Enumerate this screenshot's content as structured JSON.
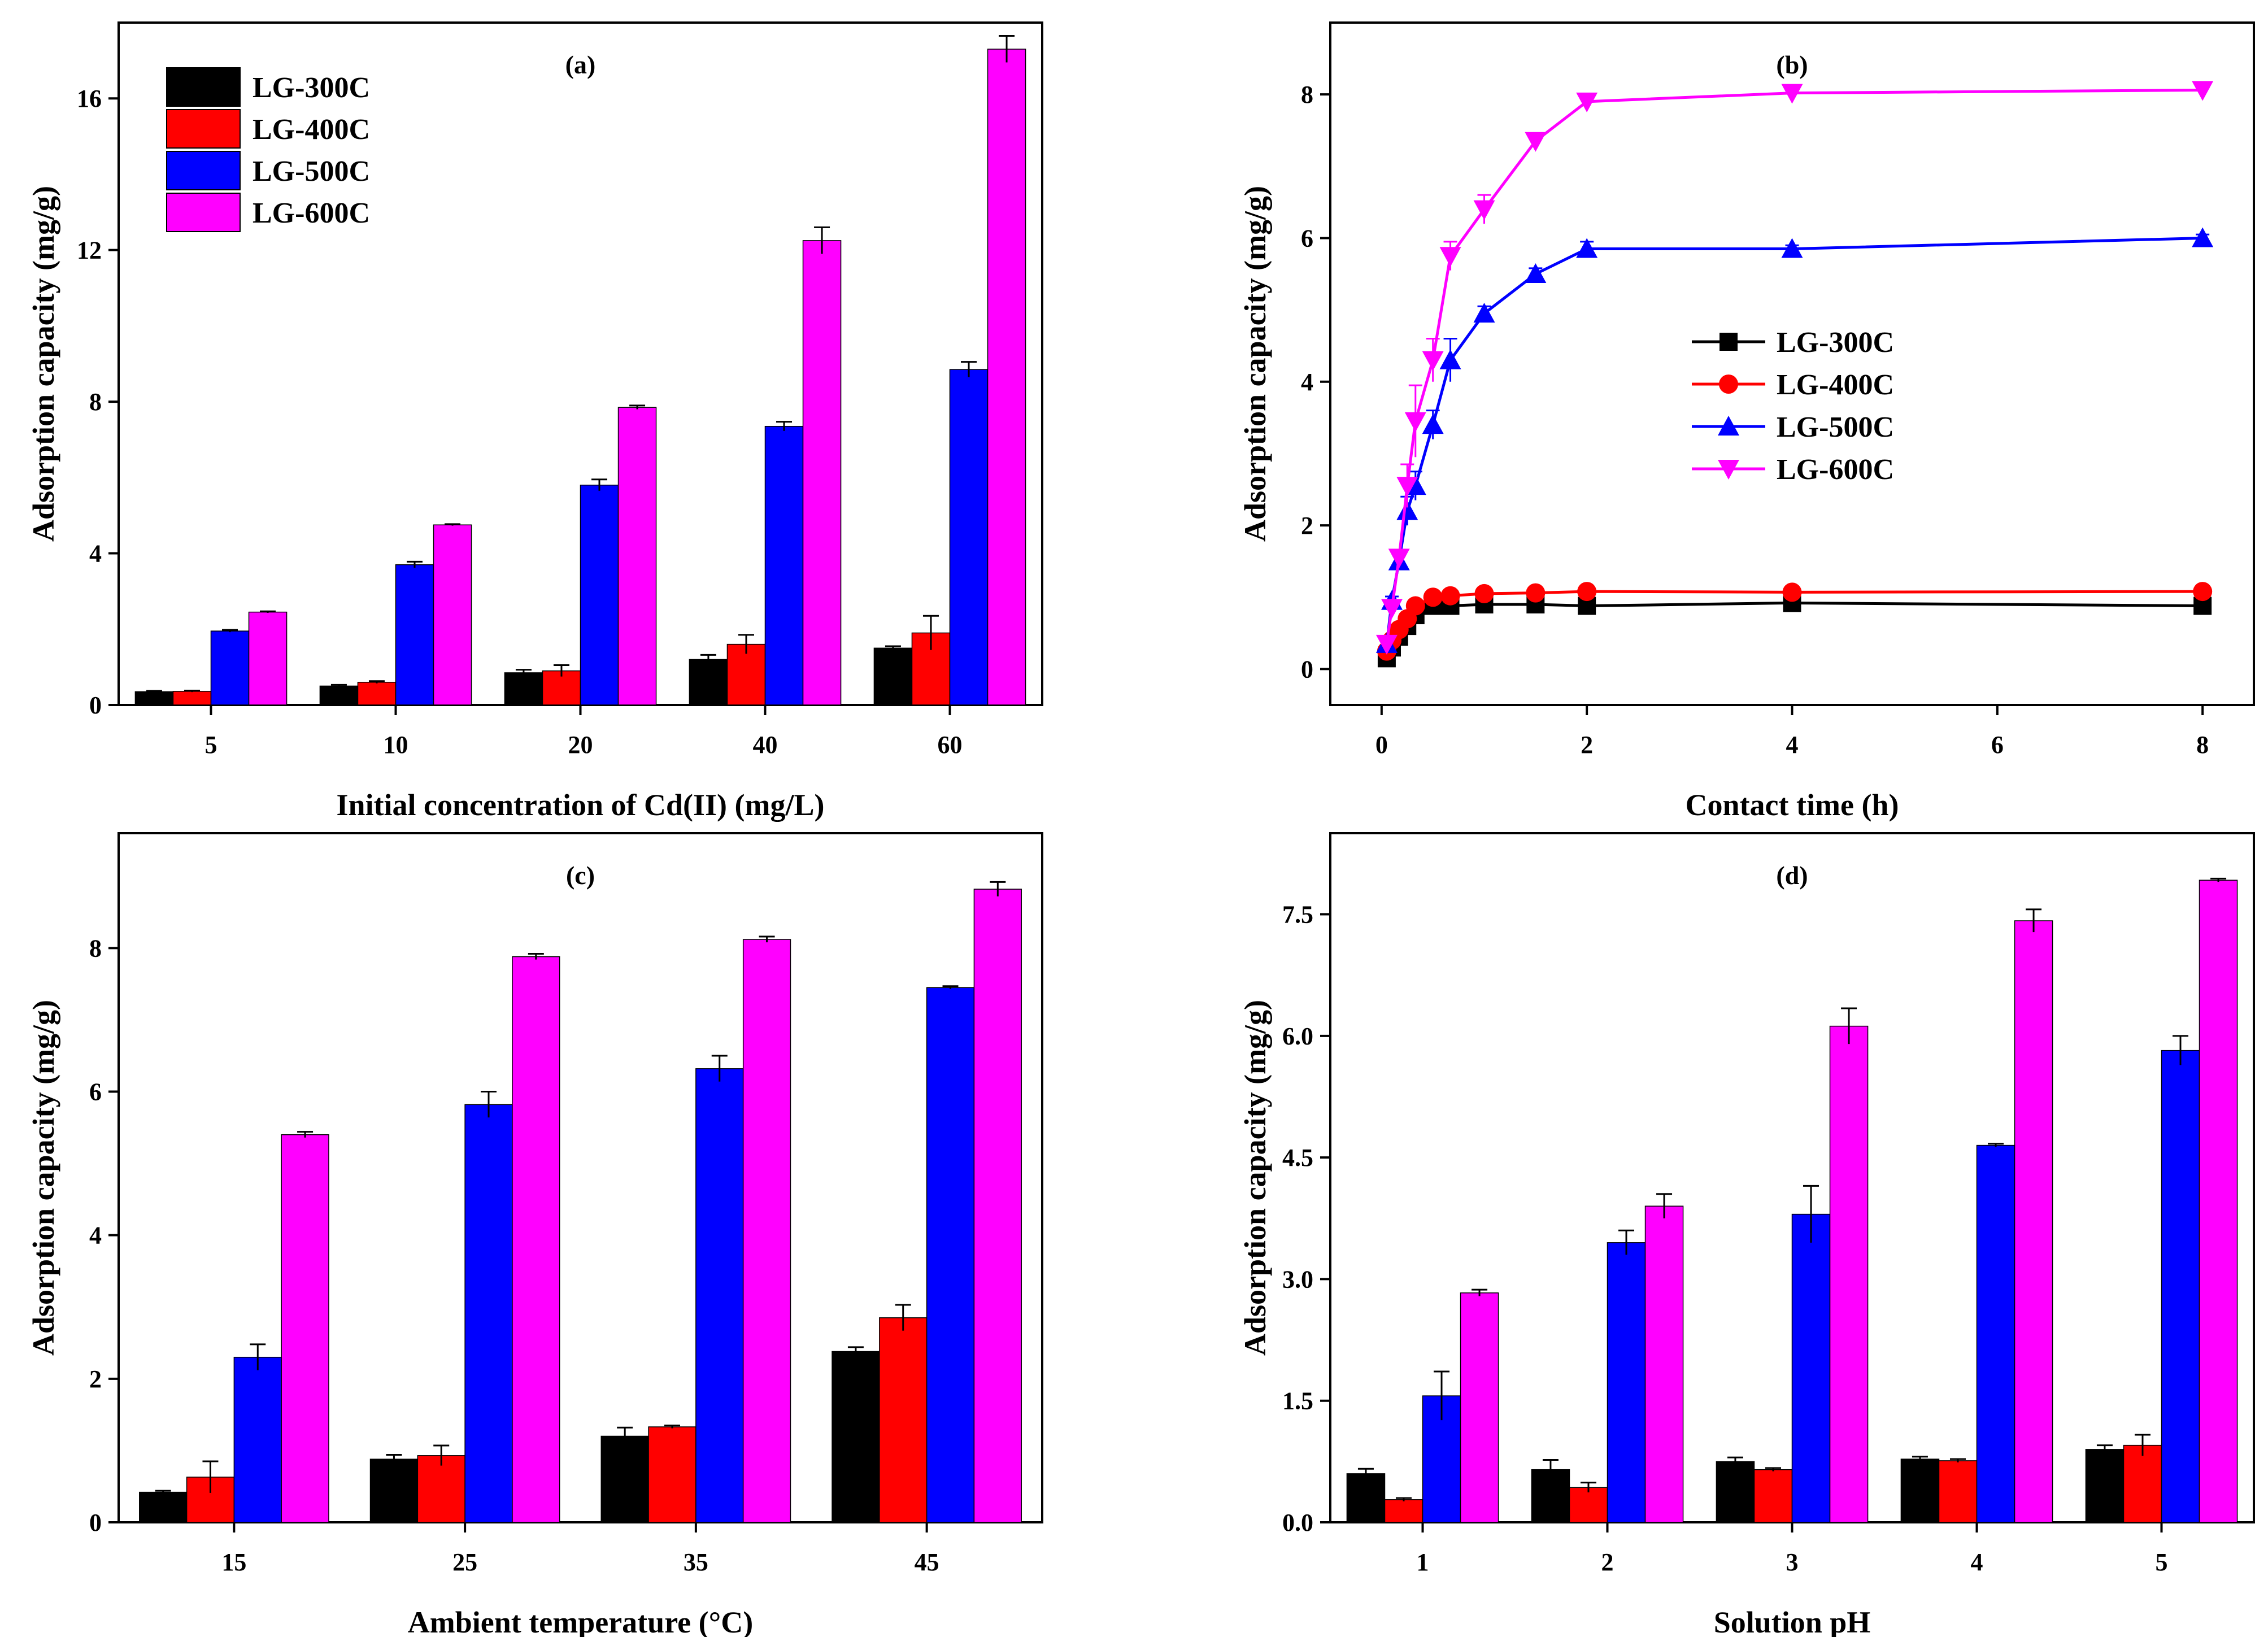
{
  "series_names": [
    "LG-300C",
    "LG-400C",
    "LG-500C",
    "LG-600C"
  ],
  "colors": {
    "LG-300C": "#000000",
    "LG-400C": "#ff0000",
    "LG-500C": "#0000ff",
    "LG-600C": "#ff00ff"
  },
  "chart_data": [
    {
      "id": "a",
      "type": "bar",
      "panel_label": "(a)",
      "xlabel": "Initial concentration of Cd(II) (mg/L)",
      "ylabel": "Adsorption capacity (mg/g)",
      "categories": [
        "5",
        "10",
        "20",
        "40",
        "60"
      ],
      "ylim": [
        0,
        18
      ],
      "yticks": [
        0,
        4,
        8,
        12,
        16
      ],
      "ytick_labels": [
        "0",
        "4",
        "8",
        "12",
        "16"
      ],
      "legend": "top-left",
      "series": [
        {
          "name": "LG-300C",
          "values": [
            0.35,
            0.5,
            0.85,
            1.2,
            1.5
          ],
          "errors": [
            0.02,
            0.03,
            0.08,
            0.12,
            0.05
          ]
        },
        {
          "name": "LG-400C",
          "values": [
            0.36,
            0.6,
            0.9,
            1.6,
            1.9
          ],
          "errors": [
            0.02,
            0.03,
            0.15,
            0.25,
            0.45
          ]
        },
        {
          "name": "LG-500C",
          "values": [
            1.95,
            3.7,
            5.8,
            7.35,
            8.85
          ],
          "errors": [
            0.03,
            0.08,
            0.15,
            0.12,
            0.2
          ]
        },
        {
          "name": "LG-600C",
          "values": [
            2.45,
            4.75,
            7.85,
            12.25,
            17.3
          ],
          "errors": [
            0.02,
            0.02,
            0.05,
            0.35,
            0.35
          ]
        }
      ]
    },
    {
      "id": "b",
      "type": "line",
      "panel_label": "(b)",
      "xlabel": "Contact time (h)",
      "ylabel": "Adsorption capacity (mg/g)",
      "xlim": [
        -0.5,
        8.5
      ],
      "ylim": [
        -0.5,
        9.0
      ],
      "xticks": [
        0,
        2,
        4,
        6,
        8
      ],
      "xtick_labels": [
        "0",
        "2",
        "4",
        "6",
        "8"
      ],
      "yticks": [
        0,
        2,
        4,
        6,
        8
      ],
      "ytick_labels": [
        "0",
        "2",
        "4",
        "6",
        "8"
      ],
      "legend": "center",
      "series": [
        {
          "name": "LG-300C",
          "marker": "square",
          "x": [
            0.05,
            0.1,
            0.17,
            0.25,
            0.33,
            0.5,
            0.67,
            1,
            1.5,
            2,
            4,
            8
          ],
          "y": [
            0.15,
            0.3,
            0.45,
            0.6,
            0.75,
            0.88,
            0.88,
            0.9,
            0.9,
            0.88,
            0.92,
            0.88
          ],
          "errors": [
            0.1,
            0.05,
            0.04,
            0.03,
            0.03,
            0.05,
            0.05,
            0.04,
            0.04,
            0.03,
            0.03,
            0.03
          ]
        },
        {
          "name": "LG-400C",
          "marker": "circle",
          "x": [
            0.05,
            0.1,
            0.17,
            0.25,
            0.33,
            0.5,
            0.67,
            1,
            1.5,
            2,
            4,
            8
          ],
          "y": [
            0.25,
            0.4,
            0.55,
            0.7,
            0.88,
            1.0,
            1.02,
            1.05,
            1.06,
            1.08,
            1.07,
            1.08
          ],
          "errors": [
            0.05,
            0.04,
            0.04,
            0.03,
            0.03,
            0.03,
            0.03,
            0.03,
            0.03,
            0.03,
            0.03,
            0.03
          ]
        },
        {
          "name": "LG-500C",
          "marker": "triangle-up",
          "x": [
            0.05,
            0.1,
            0.17,
            0.25,
            0.33,
            0.5,
            0.67,
            1,
            1.5,
            2,
            4,
            8
          ],
          "y": [
            0.35,
            0.95,
            1.5,
            2.2,
            2.55,
            3.4,
            4.3,
            4.95,
            5.5,
            5.85,
            5.85,
            6.0
          ],
          "errors": [
            0.05,
            0.06,
            0.08,
            0.2,
            0.2,
            0.2,
            0.3,
            0.1,
            0.08,
            0.1,
            0.05,
            0.05
          ]
        },
        {
          "name": "LG-600C",
          "marker": "triangle-down",
          "x": [
            0.05,
            0.1,
            0.17,
            0.25,
            0.33,
            0.5,
            0.67,
            1,
            1.5,
            2,
            4,
            8
          ],
          "y": [
            0.35,
            0.85,
            1.55,
            2.55,
            3.45,
            4.3,
            5.75,
            6.4,
            7.35,
            7.9,
            8.02,
            8.06
          ],
          "errors": [
            0.05,
            0.05,
            0.1,
            0.3,
            0.5,
            0.3,
            0.2,
            0.2,
            0.1,
            0.05,
            0.03,
            0.03
          ]
        }
      ]
    },
    {
      "id": "c",
      "type": "bar",
      "panel_label": "(c)",
      "xlabel": "Ambient temperature (°C)",
      "ylabel": "Adsorption capacity (mg/g)",
      "categories": [
        "15",
        "25",
        "35",
        "45"
      ],
      "ylim": [
        0,
        9.6
      ],
      "yticks": [
        0,
        2,
        4,
        6,
        8
      ],
      "ytick_labels": [
        "0",
        "2",
        "4",
        "6",
        "8"
      ],
      "series": [
        {
          "name": "LG-300C",
          "values": [
            0.42,
            0.88,
            1.2,
            2.38
          ],
          "errors": [
            0.02,
            0.06,
            0.12,
            0.06
          ]
        },
        {
          "name": "LG-400C",
          "values": [
            0.63,
            0.93,
            1.33,
            2.85
          ],
          "errors": [
            0.22,
            0.14,
            0.02,
            0.18
          ]
        },
        {
          "name": "LG-500C",
          "values": [
            2.3,
            5.82,
            6.32,
            7.45
          ],
          "errors": [
            0.18,
            0.18,
            0.18,
            0.02
          ]
        },
        {
          "name": "LG-600C",
          "values": [
            5.4,
            7.88,
            8.12,
            8.82
          ],
          "errors": [
            0.04,
            0.04,
            0.04,
            0.1
          ]
        }
      ]
    },
    {
      "id": "d",
      "type": "bar",
      "panel_label": "(d)",
      "xlabel": "Solution pH",
      "ylabel": "Adsorption capacity (mg/g)",
      "categories": [
        "1",
        "2",
        "3",
        "4",
        "5"
      ],
      "ylim": [
        0,
        8.5
      ],
      "yticks": [
        0,
        1.5,
        3.0,
        4.5,
        6.0,
        7.5
      ],
      "ytick_labels": [
        "0.0",
        "1.5",
        "3.0",
        "4.5",
        "6.0",
        "7.5"
      ],
      "series": [
        {
          "name": "LG-300C",
          "values": [
            0.6,
            0.65,
            0.75,
            0.78,
            0.9
          ],
          "errors": [
            0.06,
            0.12,
            0.05,
            0.03,
            0.05
          ]
        },
        {
          "name": "LG-400C",
          "values": [
            0.28,
            0.43,
            0.65,
            0.76,
            0.95
          ],
          "errors": [
            0.02,
            0.06,
            0.02,
            0.02,
            0.13
          ]
        },
        {
          "name": "LG-500C",
          "values": [
            1.56,
            3.45,
            3.8,
            4.65,
            5.82
          ],
          "errors": [
            0.3,
            0.15,
            0.35,
            0.02,
            0.18
          ]
        },
        {
          "name": "LG-600C",
          "values": [
            2.83,
            3.9,
            6.12,
            7.42,
            7.92
          ],
          "errors": [
            0.04,
            0.15,
            0.22,
            0.14,
            0.02
          ]
        }
      ]
    }
  ]
}
